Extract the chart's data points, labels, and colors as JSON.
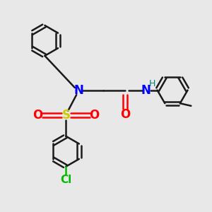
{
  "bg_color": "#e8e8e8",
  "bond_color": "#1a1a1a",
  "N_color": "#0000ff",
  "O_color": "#ff0000",
  "S_color": "#cccc00",
  "Cl_color": "#00bb00",
  "H_color": "#008080",
  "figsize": [
    3.0,
    3.0
  ],
  "dpi": 100,
  "xlim": [
    0,
    10
  ],
  "ylim": [
    0,
    10
  ]
}
